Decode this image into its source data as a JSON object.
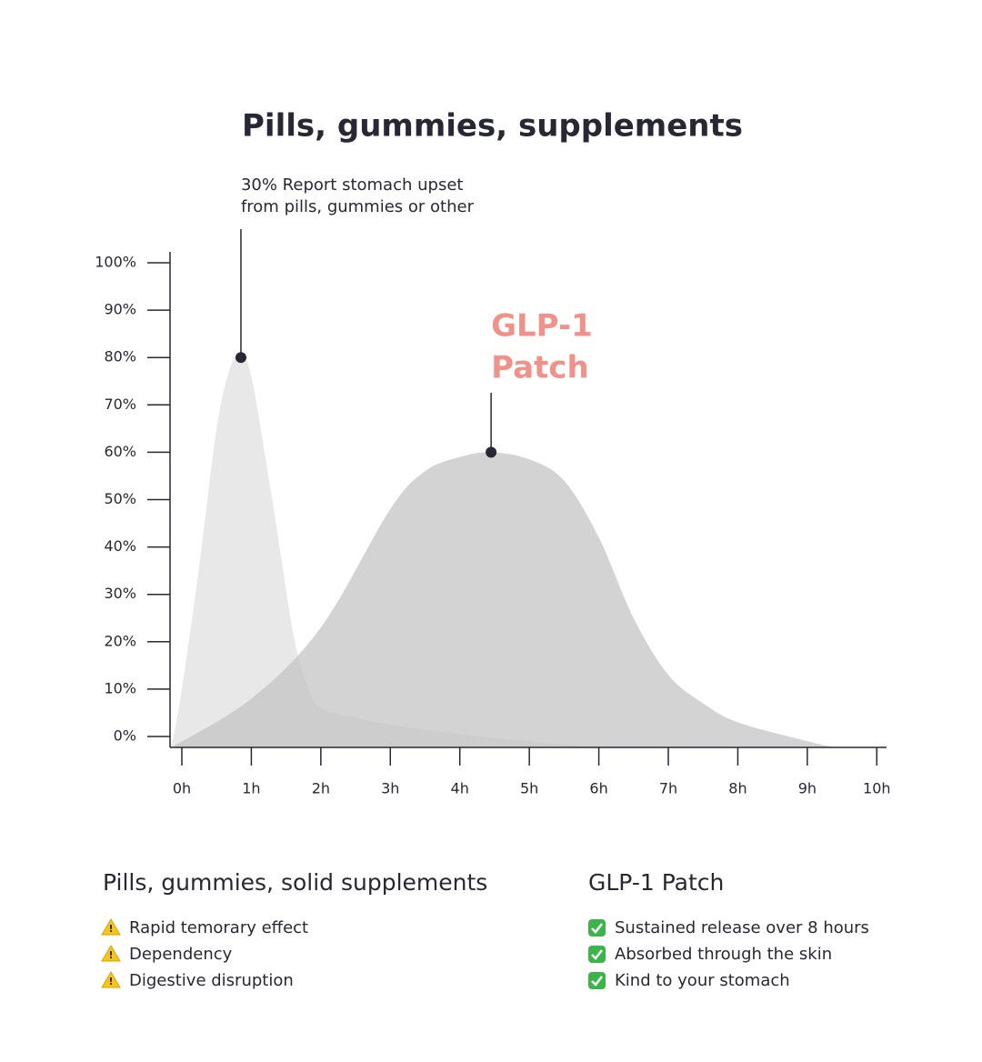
{
  "chart_data": {
    "type": "area",
    "title": "Pills, gummies, supplements",
    "xlim": [
      -0.17,
      10.14
    ],
    "ylim": [
      -2.3,
      102.3
    ],
    "xticks": [
      {
        "value": 0,
        "label": "0h"
      },
      {
        "value": 1,
        "label": "1h"
      },
      {
        "value": 2,
        "label": "2h"
      },
      {
        "value": 3,
        "label": "3h"
      },
      {
        "value": 4,
        "label": "4h"
      },
      {
        "value": 5,
        "label": "5h"
      },
      {
        "value": 6,
        "label": "6h"
      },
      {
        "value": 7,
        "label": "7h"
      },
      {
        "value": 8,
        "label": "8h"
      },
      {
        "value": 9,
        "label": "9h"
      },
      {
        "value": 10,
        "label": "10h"
      }
    ],
    "yticks": [
      {
        "value": 0,
        "label": "0%"
      },
      {
        "value": 10,
        "label": "10%"
      },
      {
        "value": 20,
        "label": "20%"
      },
      {
        "value": 30,
        "label": "30%"
      },
      {
        "value": 40,
        "label": "40%"
      },
      {
        "value": 50,
        "label": "50%"
      },
      {
        "value": 60,
        "label": "60%"
      },
      {
        "value": 70,
        "label": "70%"
      },
      {
        "value": 80,
        "label": "80%"
      },
      {
        "value": 90,
        "label": "90%"
      },
      {
        "value": 100,
        "label": "100%"
      }
    ],
    "series": [
      {
        "color": "#e8e8e8",
        "opacity": 1,
        "x": [
          -0.15,
          0,
          0.25,
          0.5,
          0.7,
          0.85,
          1.0,
          1.3,
          1.6,
          1.8,
          2.0,
          2.5,
          3,
          4,
          5,
          6
        ],
        "values": [
          -2.3,
          10,
          36,
          65,
          78,
          80,
          76,
          50,
          22,
          11,
          6,
          4,
          2.5,
          0.5,
          -1,
          -2.3
        ]
      },
      {
        "color": "#c4c4c4",
        "opacity": 0.75,
        "x": [
          -0.15,
          1,
          2,
          3,
          3.5,
          4,
          4.45,
          5,
          5.5,
          6,
          6.5,
          7,
          7.5,
          8,
          9,
          9.4
        ],
        "values": [
          -2.3,
          8,
          23,
          48,
          56,
          59,
          60,
          58.5,
          54,
          42,
          25,
          13,
          7,
          3,
          -1,
          -2.3
        ]
      }
    ],
    "annotations": [
      {
        "x": 0.85,
        "y": 80,
        "color": "#272833",
        "lines": [
          "30% Report stomach upset",
          "from pills, gummies or other"
        ]
      },
      {
        "x": 4.45,
        "y": 60,
        "color": "#f0928a",
        "lines": [
          "GLP-1",
          "Patch"
        ]
      }
    ]
  },
  "lists": [
    {
      "title": "Pills, gummies, solid supplements",
      "icon": "warning",
      "items": [
        "Rapid temorary effect",
        "Dependency",
        "Digestive disruption"
      ]
    },
    {
      "title": "GLP-1 Patch",
      "icon": "check",
      "items": [
        "Sustained release over 8 hours",
        "Absorbed through the skin",
        "Kind to your stomach"
      ]
    }
  ]
}
